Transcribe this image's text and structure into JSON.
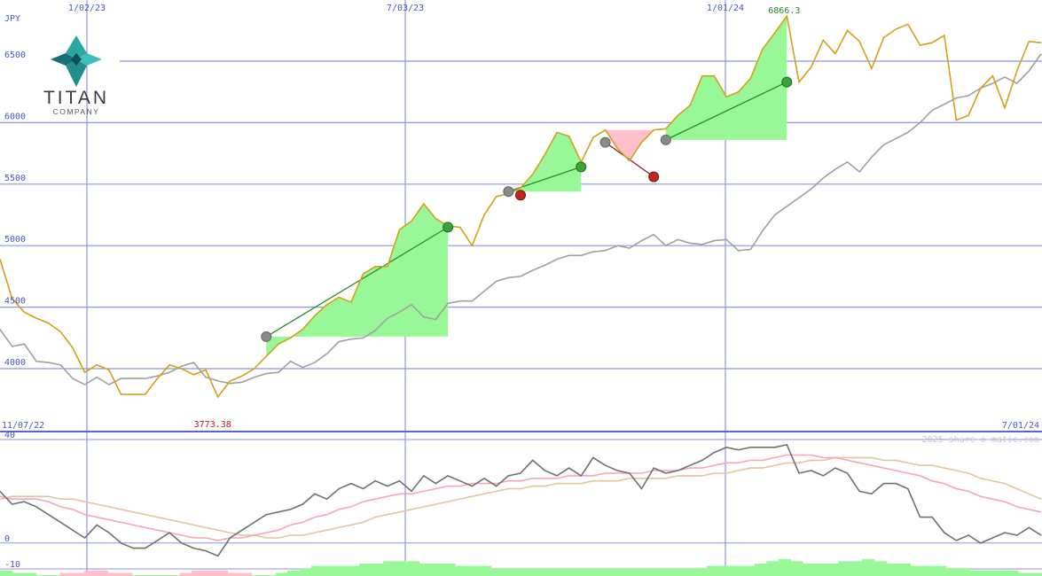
{
  "brand": {
    "name": "TITAN",
    "sub": "COMPANY",
    "watermark": "2025 share-o-matic.com"
  },
  "chart_data": {
    "type": "line",
    "currency": "JPY",
    "ylim": [
      3700,
      6900
    ],
    "y_ticks": [
      4000,
      4500,
      5000,
      5500,
      6000,
      6500
    ],
    "x_ticks": [
      "1/02/23",
      "7/03/23",
      "1/01/24"
    ],
    "date_range": {
      "start": "11/07/22",
      "end": "7/01/24"
    },
    "max_label": "6866.3",
    "min_label": "3773.38",
    "series": [
      {
        "color": "#d4a017",
        "values": [
          4890,
          4570,
          4460,
          4410,
          4370,
          4300,
          4170,
          3970,
          4030,
          3990,
          3790,
          3790,
          3790,
          3920,
          4030,
          4000,
          3950,
          3990,
          3770,
          3900,
          3940,
          4000,
          4100,
          4200,
          4250,
          4320,
          4430,
          4520,
          4580,
          4540,
          4770,
          4830,
          4830,
          5130,
          5200,
          5340,
          5220,
          5160,
          5150,
          5000,
          5250,
          5400,
          5420,
          5470,
          5580,
          5740,
          5920,
          5890,
          5680,
          5880,
          5940,
          5790,
          5690,
          5840,
          5940,
          5950,
          6060,
          6140,
          6380,
          6380,
          6210,
          6250,
          6360,
          6600,
          6730,
          6866.3,
          6330,
          6450,
          6670,
          6560,
          6750,
          6660,
          6440,
          6690,
          6760,
          6800,
          6630,
          6650,
          6710,
          6020,
          6060,
          6280,
          6380,
          6120,
          6420,
          6660,
          6650
        ]
      },
      {
        "color": "#a0a0a0",
        "values": [
          4320,
          4180,
          4200,
          4060,
          4050,
          4030,
          3920,
          3870,
          3930,
          3870,
          3920,
          3920,
          3920,
          3940,
          3970,
          4020,
          4050,
          3930,
          3900,
          3880,
          3890,
          3930,
          3960,
          3970,
          4060,
          4010,
          4050,
          4120,
          4220,
          4240,
          4250,
          4310,
          4410,
          4460,
          4520,
          4420,
          4400,
          4530,
          4550,
          4550,
          4630,
          4710,
          4740,
          4750,
          4800,
          4840,
          4890,
          4920,
          4920,
          4950,
          4960,
          5000,
          4980,
          5040,
          5090,
          5000,
          5050,
          5020,
          5010,
          5040,
          5050,
          4960,
          4970,
          5120,
          5250,
          5320,
          5390,
          5460,
          5550,
          5620,
          5680,
          5600,
          5720,
          5820,
          5870,
          5920,
          6000,
          6100,
          6150,
          6200,
          6220,
          6280,
          6320,
          6370,
          6320,
          6420,
          6560
        ]
      }
    ],
    "trades": [
      {
        "from": [
          22,
          4260
        ],
        "to": [
          37,
          5150
        ],
        "result": "gain"
      },
      {
        "from": [
          42,
          5440
        ],
        "to": [
          48,
          5640
        ],
        "result": "gain"
      },
      {
        "from": [
          50,
          5840
        ],
        "to": [
          54,
          5560
        ],
        "result": "loss"
      },
      {
        "from": [
          55,
          5860
        ],
        "to": [
          65,
          6330
        ],
        "result": "gain"
      }
    ],
    "indicator": {
      "ylim": [
        -10,
        40
      ],
      "y_ticks": [
        40,
        0,
        -10
      ],
      "series": [
        {
          "color": "#707070",
          "values": [
            20,
            15,
            16,
            14,
            11,
            8,
            5,
            2,
            7,
            4,
            0,
            -2,
            -2,
            1,
            4,
            0,
            -2,
            -3,
            -5,
            2,
            5,
            8,
            11,
            12,
            13,
            15,
            19,
            17,
            21,
            23,
            21,
            24,
            22,
            24,
            20,
            26,
            23,
            26,
            24,
            22,
            25,
            22,
            26,
            27,
            32,
            28,
            26,
            29,
            26,
            33,
            30,
            28,
            27,
            21,
            29,
            27,
            28,
            30,
            32,
            35,
            37,
            36,
            37,
            37,
            37,
            38,
            27,
            28,
            26,
            29,
            27,
            20,
            19,
            23,
            23,
            21,
            10,
            10,
            4,
            1,
            3,
            0,
            2,
            4,
            3,
            6,
            3
          ]
        },
        {
          "color": "#f4a6b8",
          "values": [
            18,
            17,
            17,
            17,
            16,
            14,
            13,
            11,
            10,
            9,
            8,
            7,
            6,
            5,
            4,
            3,
            2,
            2,
            1,
            2,
            2,
            3,
            4,
            5,
            7,
            8,
            10,
            11,
            13,
            14,
            16,
            17,
            18,
            19,
            19,
            20,
            21,
            22,
            22,
            23,
            23,
            23,
            24,
            24,
            25,
            25,
            25,
            26,
            26,
            26,
            27,
            27,
            27,
            27,
            28,
            28,
            28,
            29,
            29,
            30,
            31,
            31,
            32,
            32,
            33,
            34,
            34,
            34,
            33,
            33,
            32,
            31,
            30,
            29,
            28,
            27,
            26,
            24,
            23,
            21,
            20,
            18,
            17,
            16,
            14,
            13,
            12
          ]
        },
        {
          "color": "#e2c49a",
          "values": [
            17,
            18,
            18,
            18,
            18,
            17,
            17,
            16,
            15,
            14,
            13,
            12,
            11,
            10,
            9,
            8,
            7,
            6,
            5,
            4,
            3,
            3,
            2,
            2,
            3,
            3,
            4,
            5,
            6,
            7,
            8,
            10,
            11,
            12,
            13,
            14,
            15,
            16,
            17,
            18,
            19,
            20,
            21,
            21,
            22,
            22,
            23,
            23,
            23,
            24,
            24,
            24,
            25,
            25,
            25,
            25,
            26,
            26,
            26,
            27,
            27,
            28,
            29,
            29,
            30,
            31,
            31,
            32,
            32,
            33,
            33,
            33,
            33,
            32,
            32,
            31,
            30,
            30,
            29,
            28,
            27,
            25,
            24,
            23,
            21,
            19,
            17
          ]
        }
      ],
      "histogram": [
        2,
        1,
        1,
        0,
        0,
        -1,
        -1,
        -2,
        -2,
        -1,
        -1,
        0,
        0,
        0,
        0,
        -1,
        -2,
        -2,
        -2,
        -1,
        -1,
        0,
        0,
        1,
        2,
        3,
        4,
        4,
        4,
        4,
        5,
        5,
        6,
        6,
        6,
        5,
        5,
        5,
        4,
        4,
        4,
        3,
        3,
        3,
        3,
        3,
        3,
        3,
        3,
        3,
        3,
        3,
        3,
        3,
        3,
        3,
        3,
        3,
        3,
        4,
        4,
        4,
        4,
        5,
        6,
        7,
        6,
        5,
        5,
        5,
        6,
        6,
        7,
        6,
        5,
        5,
        4,
        4,
        4,
        3,
        3,
        2,
        2,
        2,
        2,
        1,
        1
      ]
    }
  }
}
